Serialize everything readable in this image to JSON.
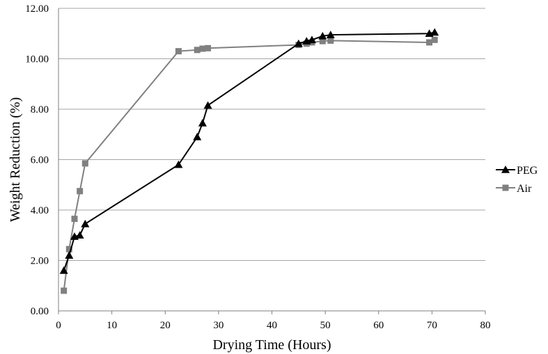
{
  "chart_data": {
    "type": "line",
    "title": "",
    "xlabel": "Drying Time (Hours)",
    "ylabel": "Weight Reduction (%)",
    "xlim": [
      0,
      80
    ],
    "ylim": [
      0,
      12
    ],
    "xticks": [
      0,
      10,
      20,
      30,
      40,
      50,
      60,
      70,
      80
    ],
    "yticks": [
      0,
      2,
      4,
      6,
      8,
      10,
      12
    ],
    "x_tick_labels": [
      "0",
      "10",
      "20",
      "30",
      "40",
      "50",
      "60",
      "70",
      "80"
    ],
    "y_tick_labels": [
      "0.00",
      "2.00",
      "4.00",
      "6.00",
      "8.00",
      "10.00",
      "12.00"
    ],
    "grid": "horizontal",
    "legend_position": "right",
    "series": [
      {
        "name": "PEG",
        "color": "#000000",
        "marker": "triangle",
        "x": [
          1,
          2,
          3,
          4,
          5,
          22.5,
          26,
          27,
          28,
          45,
          46.5,
          47.5,
          49.5,
          51,
          69.5,
          70.5
        ],
        "y": [
          1.6,
          2.2,
          2.95,
          3.0,
          3.45,
          5.8,
          6.9,
          7.45,
          8.15,
          10.6,
          10.7,
          10.75,
          10.9,
          10.95,
          11.0,
          11.05
        ]
      },
      {
        "name": "Air",
        "color": "#808080",
        "marker": "square",
        "x": [
          1,
          2,
          3,
          4,
          5,
          22.5,
          26,
          27,
          28,
          45,
          46.5,
          47.5,
          49.5,
          51,
          69.5,
          70.5
        ],
        "y": [
          0.8,
          2.45,
          3.65,
          4.75,
          5.85,
          10.3,
          10.35,
          10.4,
          10.42,
          10.55,
          10.6,
          10.65,
          10.7,
          10.72,
          10.65,
          10.75
        ]
      }
    ]
  }
}
